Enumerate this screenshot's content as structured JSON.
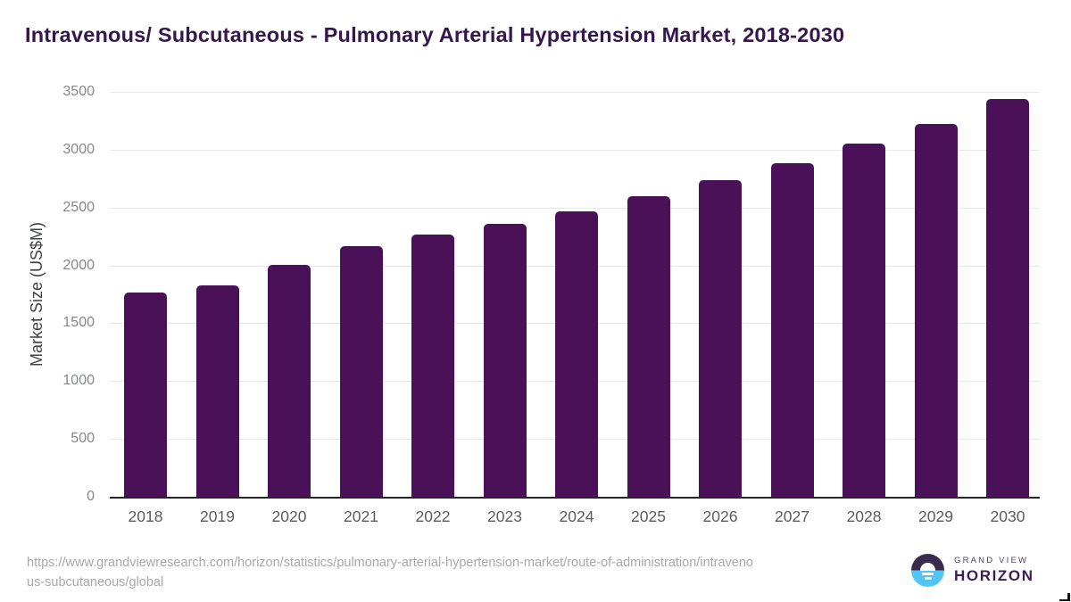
{
  "title": "Intravenous/ Subcutaneous - Pulmonary Arterial Hypertension Market, 2018-2030",
  "chart_data": {
    "type": "bar",
    "categories": [
      "2018",
      "2019",
      "2020",
      "2021",
      "2022",
      "2023",
      "2024",
      "2025",
      "2026",
      "2027",
      "2028",
      "2029",
      "2030"
    ],
    "values": [
      1765,
      1825,
      2005,
      2170,
      2265,
      2360,
      2470,
      2595,
      2735,
      2880,
      3050,
      3225,
      3440
    ],
    "title": "Intravenous/ Subcutaneous - Pulmonary Arterial Hypertension Market, 2018-2030",
    "xlabel": "",
    "ylabel": "Market Size (US$M)",
    "ylim": [
      0,
      3500
    ],
    "yticks": [
      0,
      500,
      1000,
      1500,
      2000,
      2500,
      3000,
      3500
    ],
    "grid": "horizontal",
    "legend": "none",
    "bar_color": "#4a1158"
  },
  "footer": {
    "source_url_line1": "https://www.grandviewresearch.com/horizon/statistics/pulmonary-arterial-hypertension-market/route-of-administration/intraveno",
    "source_url_line2": "us-subcutaneous/global",
    "logo": {
      "brand_top": "GRAND VIEW",
      "brand_bottom": "HORIZON",
      "icon": "horizon-sun-icon",
      "icon_dark_color": "#3a2a4d",
      "icon_blue_color": "#52c5f2"
    }
  },
  "colors": {
    "bar": "#4a1158",
    "title_text": "#35174d",
    "gridline": "#e8e8ea",
    "axis_line": "#262626",
    "y_tick_text": "#85878a",
    "x_tick_text": "#5a5c5e",
    "url_text": "#a6a8ab"
  }
}
